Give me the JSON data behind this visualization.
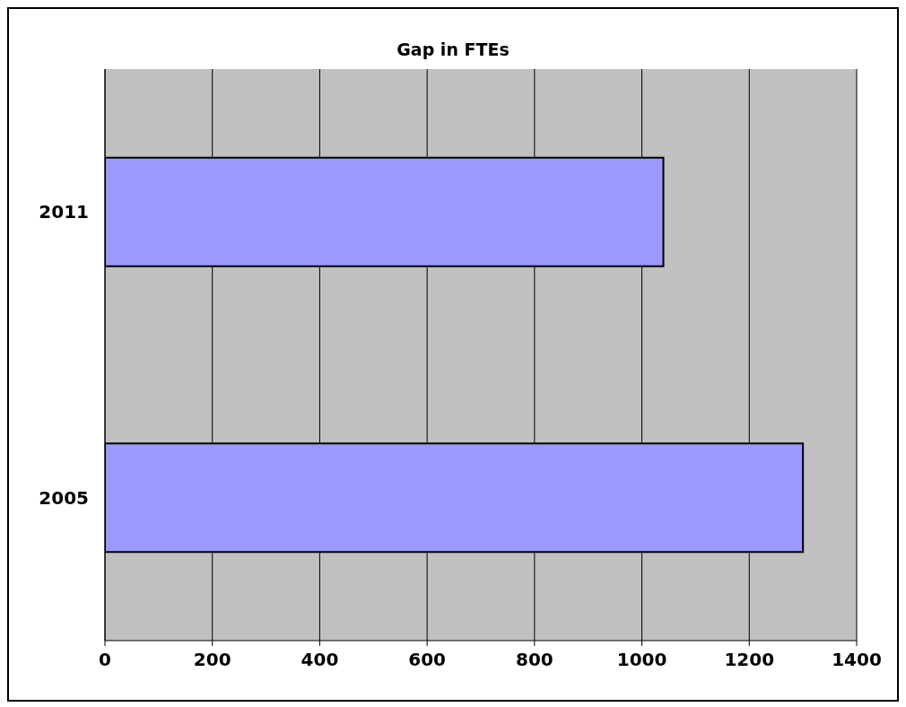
{
  "chart_data": {
    "type": "bar",
    "orientation": "horizontal",
    "title": "Gap in FTEs",
    "categories": [
      "2011",
      "2005"
    ],
    "values": [
      1040,
      1300
    ],
    "color": "#9999ff",
    "xlim": [
      0,
      1400
    ],
    "xticks": [
      0,
      200,
      400,
      600,
      800,
      1000,
      1200,
      1400
    ],
    "grid": "x"
  }
}
